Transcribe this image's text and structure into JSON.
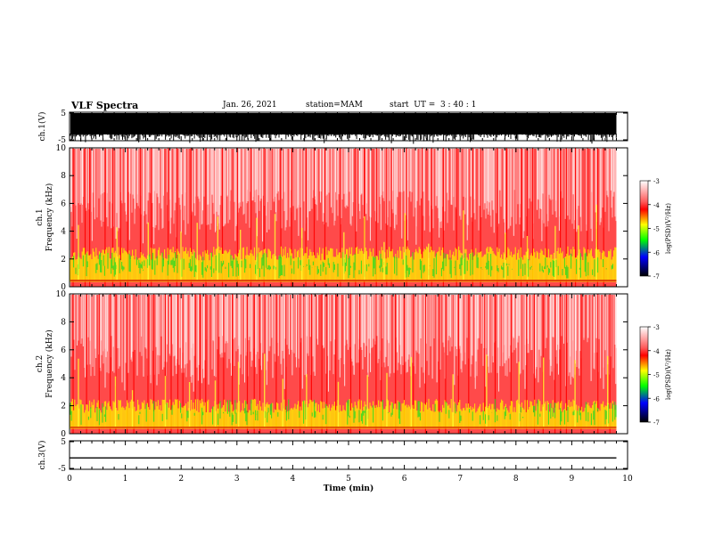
{
  "header": {
    "title": "VLF Spectra",
    "date": "Jan. 26, 2021",
    "station": "station=MAM",
    "start": "start  UT =  3 : 40 : 1"
  },
  "colors": {
    "scale": [
      "#ffffff",
      "#ff4040",
      "#ff0000",
      "#ffff00",
      "#00ff00",
      "#0000ff",
      "#000000"
    ],
    "high": "#ff2020",
    "mid": "#ffff00",
    "low": "#00e000"
  },
  "chart_data": [
    {
      "type": "line",
      "name": "ch1-voltage",
      "ylabel": "ch.1(V)",
      "ylim": [
        -5,
        5
      ],
      "yticks": [
        "5",
        "-5"
      ],
      "xlim": [
        0,
        10
      ],
      "description": "dense broadband waveform from 0 to ~9.8 min"
    },
    {
      "type": "heatmap",
      "name": "ch1-spectrogram",
      "ylabel": "ch.1\nFrequency (kHz)",
      "ylim": [
        0,
        10
      ],
      "yticks": [
        "0",
        "2",
        "4",
        "6",
        "8",
        "10"
      ],
      "xlim": [
        0,
        10
      ],
      "colorbar": {
        "label": "log(PSD)(V²/Hz)",
        "range": [
          -7,
          -3
        ],
        "ticks": [
          "-3",
          "-4",
          "-5",
          "-6",
          "-7"
        ]
      }
    },
    {
      "type": "heatmap",
      "name": "ch2-spectrogram",
      "ylabel": "ch.2\nFrequency (kHz)",
      "ylim": [
        0,
        10
      ],
      "yticks": [
        "0",
        "2",
        "4",
        "6",
        "8",
        "10"
      ],
      "xlim": [
        0,
        10
      ],
      "colorbar": {
        "label": "log(PSD)(V²/Hz)",
        "range": [
          -7,
          -3
        ],
        "ticks": [
          "-3",
          "-4",
          "-5",
          "-6",
          "-7"
        ]
      }
    },
    {
      "type": "line",
      "name": "ch3-voltage",
      "ylabel": "ch.3(V)",
      "ylim": [
        -5,
        5
      ],
      "yticks": [
        "5",
        "-5"
      ],
      "x": [
        0,
        9.8
      ],
      "y": [
        -1,
        -1
      ],
      "xlim": [
        0,
        10
      ],
      "xlabel": "Time (min)",
      "xticks": [
        "0",
        "1",
        "2",
        "3",
        "4",
        "5",
        "6",
        "7",
        "8",
        "9",
        "10"
      ]
    }
  ]
}
